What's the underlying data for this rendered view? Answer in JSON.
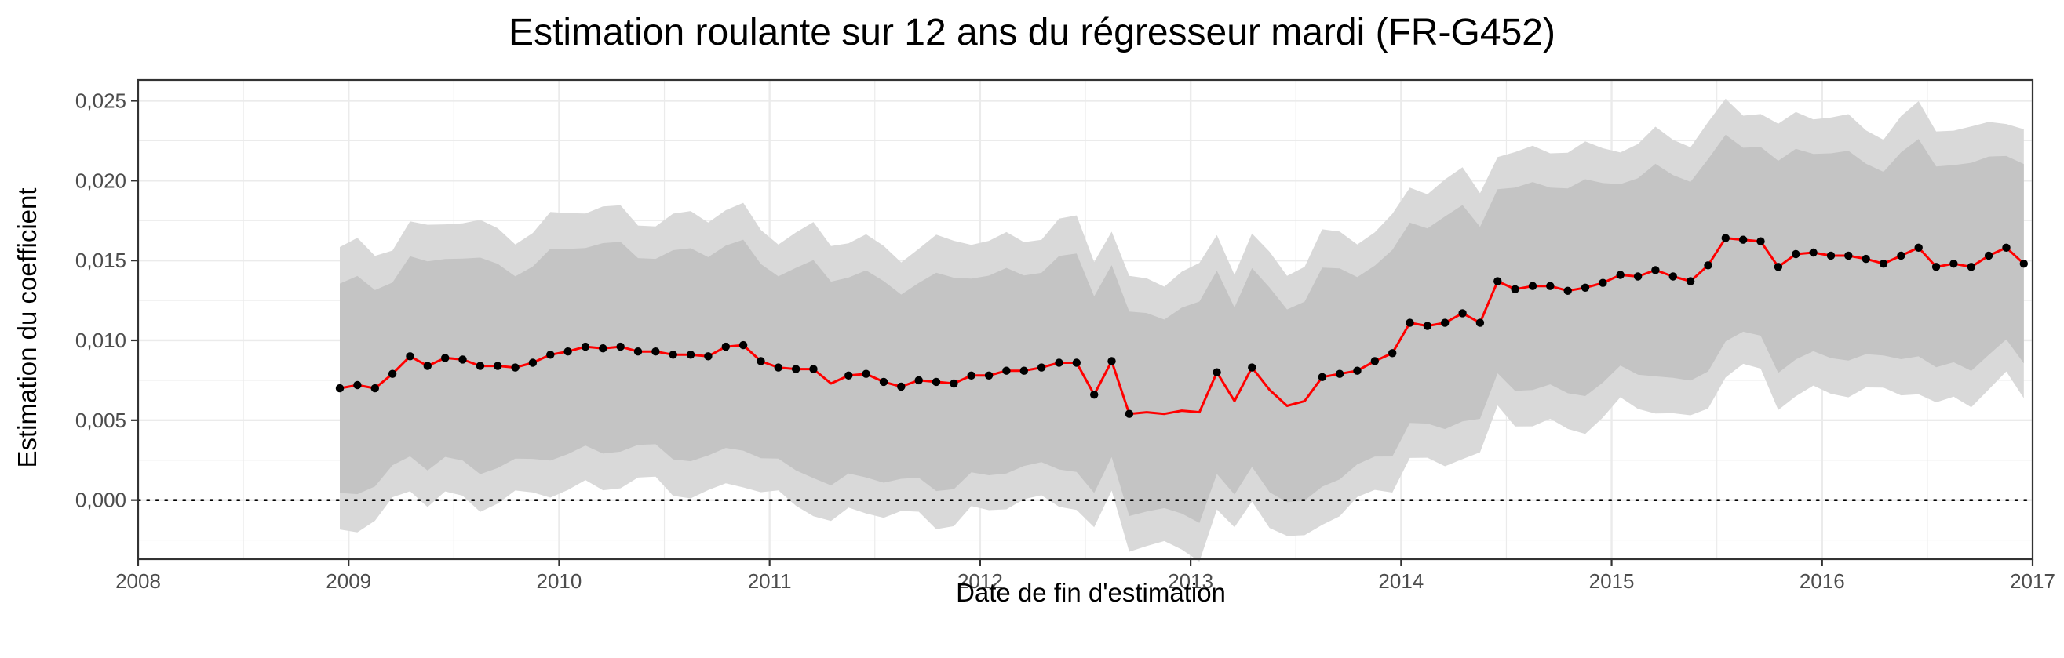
{
  "chart_data": {
    "type": "line",
    "title": "Estimation roulante sur 12 ans du régresseur mardi (FR-G452)",
    "xlabel": "Date de fin d'estimation",
    "ylabel": "Estimation du coefficient",
    "xlim": [
      2008,
      2017
    ],
    "ylim": [
      -0.0037,
      0.0263
    ],
    "x_ticks": [
      2008,
      2009,
      2010,
      2011,
      2012,
      2013,
      2014,
      2015,
      2016,
      2017
    ],
    "x_tick_labels": [
      "2008",
      "2009",
      "2010",
      "2011",
      "2012",
      "2013",
      "2014",
      "2015",
      "2016",
      "2017"
    ],
    "y_ticks": [
      0,
      0.005,
      0.01,
      0.015,
      0.02,
      0.025
    ],
    "y_tick_labels": [
      "0,000",
      "0,005",
      "0,010",
      "0,015",
      "0,020",
      "0,025"
    ],
    "reference_line": 0,
    "grid": true,
    "colors": {
      "line": "#ff0000",
      "points": "#000000",
      "outer_band": "#d9d9d9",
      "inner_band": "#c4c4c4",
      "grid": "#ebebeb",
      "panel_border": "#333333"
    },
    "series": [
      {
        "x": [
          "2008-12",
          "2009-01",
          "2009-02",
          "2009-03",
          "2009-04",
          "2009-05",
          "2009-06",
          "2009-07",
          "2009-08",
          "2009-09",
          "2009-10",
          "2009-11",
          "2009-12",
          "2010-01",
          "2010-02",
          "2010-03",
          "2010-04",
          "2010-05",
          "2010-06",
          "2010-07",
          "2010-08",
          "2010-09",
          "2010-10",
          "2010-11",
          "2010-12",
          "2011-01",
          "2011-02",
          "2011-03",
          "2011-04",
          "2011-05",
          "2011-06",
          "2011-07",
          "2011-08",
          "2011-09",
          "2011-10",
          "2011-11",
          "2011-12",
          "2012-01",
          "2012-02",
          "2012-03",
          "2012-04",
          "2012-05",
          "2012-06",
          "2012-07",
          "2012-08",
          "2012-09",
          "2012-10",
          "2012-11",
          "2012-12",
          "2013-01",
          "2013-02",
          "2013-03",
          "2013-04",
          "2013-05",
          "2013-06",
          "2013-07",
          "2013-08",
          "2013-09",
          "2013-10",
          "2013-11",
          "2013-12",
          "2014-01",
          "2014-02",
          "2014-03",
          "2014-04",
          "2014-05",
          "2014-06",
          "2014-07",
          "2014-08",
          "2014-09",
          "2014-10",
          "2014-11",
          "2014-12",
          "2015-01",
          "2015-02",
          "2015-03",
          "2015-04",
          "2015-05",
          "2015-06",
          "2015-07",
          "2015-08",
          "2015-09",
          "2015-10",
          "2015-11",
          "2015-12",
          "2016-01",
          "2016-02",
          "2016-03",
          "2016-04",
          "2016-05",
          "2016-06",
          "2016-07",
          "2016-08",
          "2016-09",
          "2016-10",
          "2016-11",
          "2016-12"
        ],
        "estimate": [
          0.007,
          0.0072,
          0.007,
          0.0079,
          0.009,
          0.0084,
          0.0089,
          0.0088,
          0.0084,
          0.0084,
          0.0083,
          0.0086,
          0.0091,
          0.0093,
          0.0096,
          0.0095,
          0.0096,
          0.0093,
          0.0093,
          0.0091,
          0.0091,
          0.009,
          0.0096,
          0.0097,
          0.0087,
          0.0083,
          0.0082,
          0.0082,
          0.0073,
          0.0078,
          0.0079,
          0.0074,
          0.0071,
          0.0075,
          0.0074,
          0.0073,
          0.0078,
          0.0078,
          0.0081,
          0.0081,
          0.0083,
          0.0086,
          0.0086,
          0.0066,
          0.0087,
          0.0054,
          0.0055,
          0.0054,
          0.0056,
          0.0055,
          0.008,
          0.0062,
          0.0083,
          0.0069,
          0.0059,
          0.0062,
          0.0077,
          0.0079,
          0.0081,
          0.0087,
          0.0092,
          0.0111,
          0.0109,
          0.0111,
          0.0117,
          0.0111,
          0.0137,
          0.0132,
          0.0134,
          0.0134,
          0.0131,
          0.0133,
          0.0136,
          0.0141,
          0.014,
          0.0144,
          0.014,
          0.0137,
          0.0147,
          0.0164,
          0.0163,
          0.0162,
          0.0146,
          0.0154,
          0.0155,
          0.0153,
          0.0153,
          0.0151,
          0.0148,
          0.0153,
          0.0158,
          0.0146,
          0.0148,
          0.0146,
          0.0153,
          0.0158,
          0.0148
        ]
      }
    ]
  }
}
